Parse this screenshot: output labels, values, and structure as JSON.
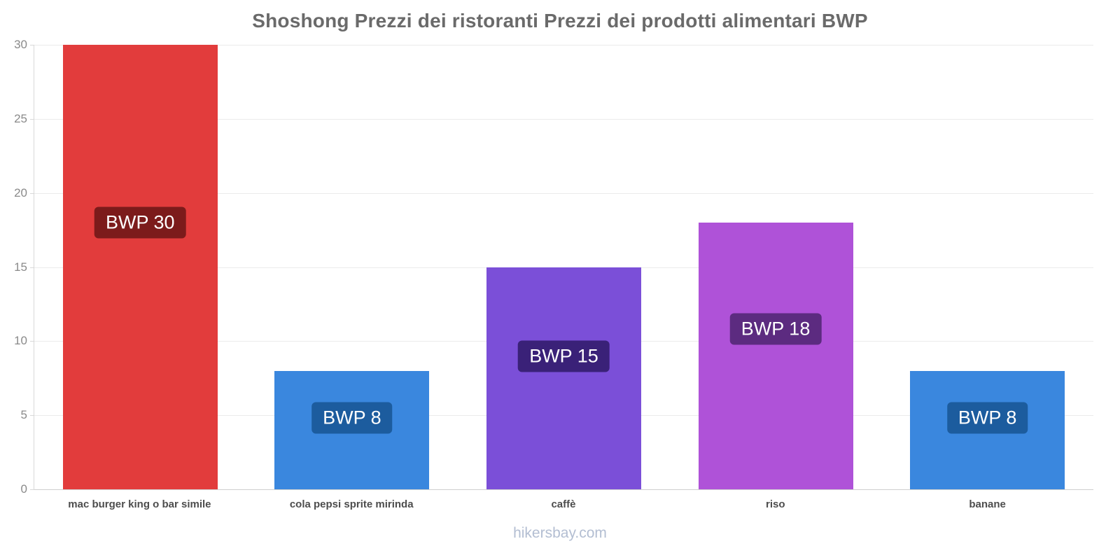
{
  "chart_data": {
    "type": "bar",
    "title": "Shoshong Prezzi dei ristoranti Prezzi dei prodotti alimentari BWP",
    "footer": "hikersbay.com",
    "categories": [
      "mac burger king o bar simile",
      "cola pepsi sprite mirinda",
      "caffè",
      "riso",
      "banane"
    ],
    "values": [
      30,
      8,
      15,
      18,
      8
    ],
    "bar_labels": [
      "BWP 30",
      "BWP 8",
      "BWP 15",
      "BWP 18",
      "BWP 8"
    ],
    "bar_colors": [
      "#e23c3c",
      "#3a87de",
      "#7b4fd8",
      "#af52d8",
      "#3a87de"
    ],
    "label_bg_colors": [
      "#7c1b1b",
      "#1c5c9e",
      "#3a2178",
      "#5c2b80",
      "#1c5c9e"
    ],
    "xlabel": "",
    "ylabel": "",
    "ylim": [
      0,
      30
    ],
    "yticks": [
      0,
      5,
      10,
      15,
      20,
      25,
      30
    ],
    "grid": true,
    "legend": "none"
  }
}
